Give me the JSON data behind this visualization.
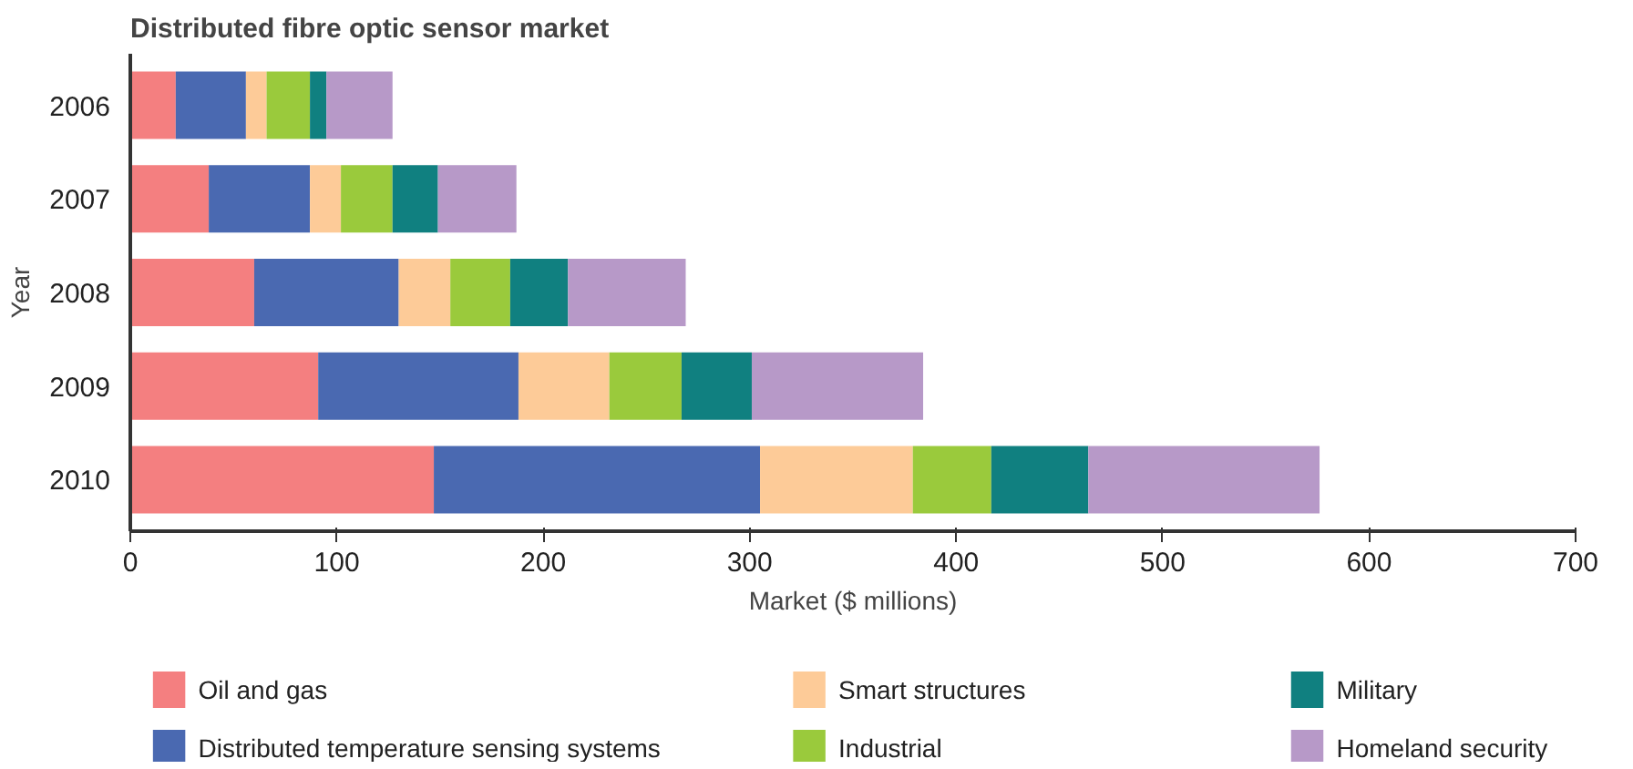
{
  "chart_data": {
    "type": "bar",
    "orientation": "horizontal",
    "stacked": true,
    "title": "Distributed fibre optic sensor market",
    "xlabel": "Market ($ millions)",
    "ylabel": "Year",
    "categories": [
      "2006",
      "2007",
      "2008",
      "2009",
      "2010"
    ],
    "series": [
      {
        "name": "Oil and gas",
        "color": "#f47f80",
        "values": [
          22,
          38,
          60,
          91,
          147
        ]
      },
      {
        "name": "Distributed temperature sensing systems",
        "color": "#4a69b1",
        "values": [
          34,
          49,
          70,
          97,
          158
        ]
      },
      {
        "name": "Smart structures",
        "color": "#fdcb98",
        "values": [
          10,
          15,
          25,
          44,
          74
        ]
      },
      {
        "name": "Industrial",
        "color": "#9aca3c",
        "values": [
          21,
          25,
          29,
          35,
          38
        ]
      },
      {
        "name": "Military",
        "color": "#108080",
        "values": [
          8,
          22,
          28,
          34,
          47
        ]
      },
      {
        "name": "Homeland security",
        "color": "#b799c8",
        "values": [
          32,
          38,
          57,
          83,
          112
        ]
      }
    ],
    "xlim": [
      0,
      700
    ],
    "xticks": [
      0,
      100,
      200,
      300,
      400,
      500,
      600,
      700
    ],
    "grid": false,
    "legend": "bottom"
  }
}
